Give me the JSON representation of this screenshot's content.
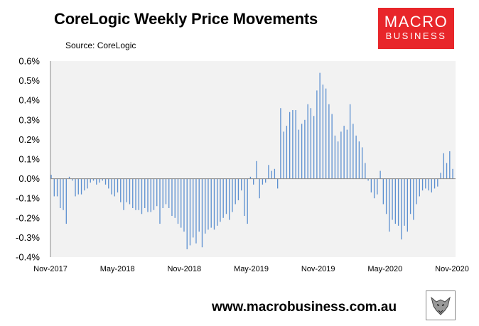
{
  "header": {
    "title": "CoreLogic Weekly Price Movements",
    "source": "Source: CoreLogic"
  },
  "logo": {
    "line1": "MACRO",
    "line2": "BUSINESS",
    "color": "#e8262a"
  },
  "footer": {
    "url": "www.macrobusiness.com.au"
  },
  "icons": {
    "mascot": "wolf-logo-icon"
  },
  "chart_data": {
    "type": "bar",
    "title": "CoreLogic Weekly Price Movements",
    "xlabel": "",
    "ylabel": "",
    "ylim": [
      -0.4,
      0.6
    ],
    "ytick_values": [
      -0.4,
      -0.3,
      -0.2,
      -0.1,
      0.0,
      0.1,
      0.2,
      0.3,
      0.4,
      0.5,
      0.6
    ],
    "ytick_labels": [
      "-0.4%",
      "-0.3%",
      "-0.2%",
      "-0.1%",
      "0.0%",
      "0.1%",
      "0.2%",
      "0.3%",
      "0.4%",
      "0.5%",
      "0.6%"
    ],
    "xtick_labels": [
      "Nov-2017",
      "May-2018",
      "Nov-2018",
      "May-2019",
      "Nov-2019",
      "May-2020",
      "Nov-2020"
    ],
    "grid": false,
    "plot_background": "#f2f2f2",
    "bar_color": "#5b8fd0",
    "legend": "none",
    "series": [
      {
        "values": [
          0.02,
          -0.09,
          -0.09,
          -0.15,
          -0.16,
          -0.23,
          0.01,
          -0.01,
          -0.09,
          -0.08,
          -0.08,
          -0.06,
          -0.05,
          -0.02,
          -0.01,
          -0.03,
          -0.02,
          -0.01,
          -0.03,
          -0.05,
          -0.08,
          -0.09,
          -0.07,
          -0.12,
          -0.16,
          -0.12,
          -0.13,
          -0.15,
          -0.16,
          -0.16,
          -0.18,
          -0.15,
          -0.17,
          -0.17,
          -0.16,
          -0.14,
          -0.23,
          -0.15,
          -0.13,
          -0.15,
          -0.19,
          -0.2,
          -0.23,
          -0.25,
          -0.27,
          -0.36,
          -0.34,
          -0.3,
          -0.33,
          -0.27,
          -0.35,
          -0.28,
          -0.26,
          -0.25,
          -0.26,
          -0.24,
          -0.22,
          -0.2,
          -0.18,
          -0.21,
          -0.17,
          -0.13,
          -0.11,
          -0.06,
          -0.19,
          -0.23,
          0.01,
          -0.03,
          0.09,
          -0.1,
          -0.03,
          -0.02,
          0.07,
          0.04,
          0.05,
          -0.05,
          0.36,
          0.24,
          0.27,
          0.34,
          0.35,
          0.35,
          0.25,
          0.28,
          0.3,
          0.38,
          0.36,
          0.32,
          0.45,
          0.54,
          0.48,
          0.46,
          0.38,
          0.33,
          0.22,
          0.19,
          0.24,
          0.27,
          0.25,
          0.38,
          0.28,
          0.22,
          0.19,
          0.16,
          0.08,
          -0.01,
          -0.07,
          -0.1,
          -0.08,
          0.04,
          -0.13,
          -0.18,
          -0.27,
          -0.21,
          -0.23,
          -0.24,
          -0.31,
          -0.24,
          -0.27,
          -0.18,
          -0.21,
          -0.13,
          -0.09,
          -0.06,
          -0.05,
          -0.06,
          -0.07,
          -0.05,
          -0.04,
          0.03,
          0.13,
          0.08,
          0.14,
          0.05
        ]
      }
    ]
  }
}
